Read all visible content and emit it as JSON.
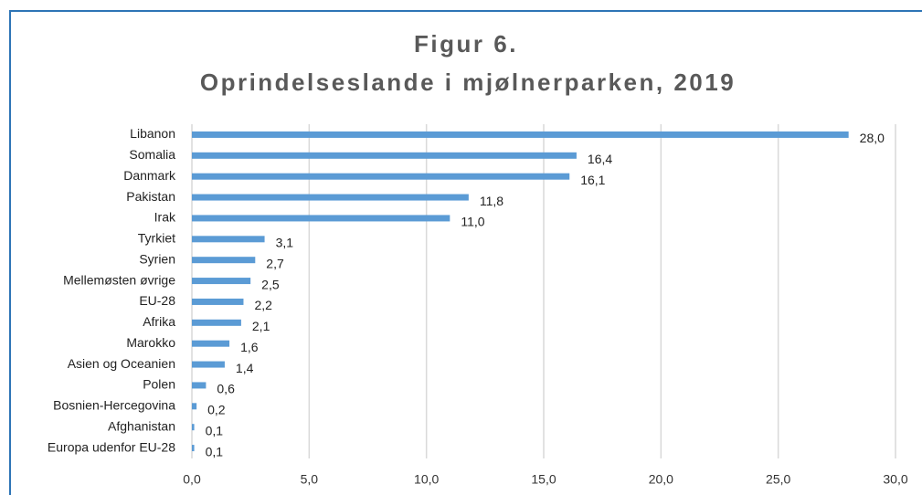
{
  "chart_data": {
    "type": "bar",
    "orientation": "horizontal",
    "title": [
      "Figur 6.",
      "Oprindelseslande i mjølnerparken, 2019"
    ],
    "categories": [
      "Libanon",
      "Somalia",
      "Danmark",
      "Pakistan",
      "Irak",
      "Tyrkiet",
      "Syrien",
      "Mellemøsten øvrige",
      "EU-28",
      "Afrika",
      "Marokko",
      "Asien og Oceanien",
      "Polen",
      "Bosnien-Hercegovina",
      "Afghanistan",
      "Europa udenfor EU-28"
    ],
    "values": [
      28.0,
      16.4,
      16.1,
      11.8,
      11.0,
      3.1,
      2.7,
      2.5,
      2.2,
      2.1,
      1.6,
      1.4,
      0.6,
      0.2,
      0.1,
      0.1
    ],
    "value_labels": [
      "28,0",
      "16,4",
      "16,1",
      "11,8",
      "11,0",
      "3,1",
      "2,7",
      "2,5",
      "2,2",
      "2,1",
      "1,6",
      "1,4",
      "0,6",
      "0,2",
      "0,1",
      "0,1"
    ],
    "color": "#5b9bd5",
    "xlim": [
      0,
      30
    ],
    "xticks": [
      {
        "value": 0,
        "label": "0,0"
      },
      {
        "value": 5,
        "label": "5,0"
      },
      {
        "value": 10,
        "label": "10,0"
      },
      {
        "value": 15,
        "label": "15,0"
      },
      {
        "value": 20,
        "label": "20,0"
      },
      {
        "value": 25,
        "label": "25,0"
      },
      {
        "value": 30,
        "label": "30,0"
      }
    ],
    "grid": true
  }
}
